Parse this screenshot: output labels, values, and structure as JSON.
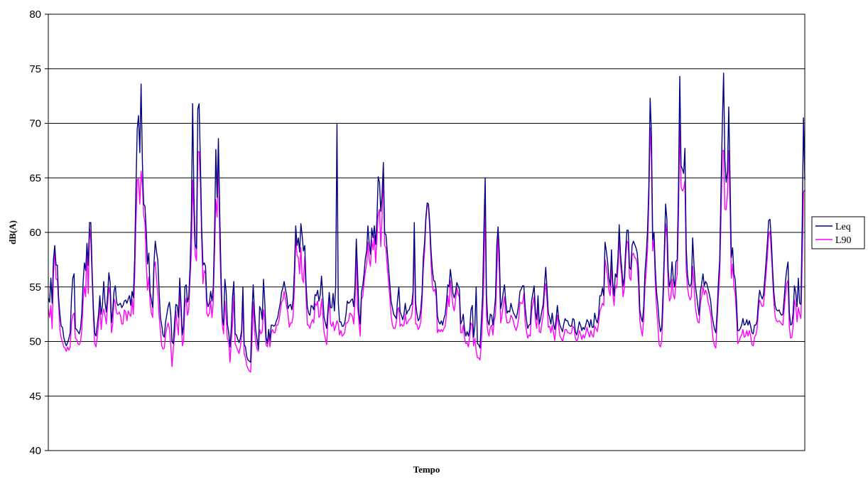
{
  "chart_data": {
    "type": "line",
    "title": "",
    "xlabel": "Tempo",
    "ylabel": "dB(A)",
    "ylim": [
      40,
      80
    ],
    "yticks": [
      "40",
      "45",
      "50",
      "55",
      "60",
      "65",
      "70",
      "75",
      "80"
    ],
    "grid": "horizontal",
    "legend_position": "right",
    "series": [
      {
        "name": "Leq",
        "color": "#000080",
        "values": [
          54,
          53.6,
          55.8,
          53.5,
          57.5,
          58.8,
          57,
          57,
          54,
          52.5,
          51.4,
          51.3,
          50.4,
          49.9,
          49.6,
          49.9,
          50.3,
          50.8,
          54,
          55.8,
          56.2,
          51.2,
          51.1,
          50.9,
          50.7,
          51.2,
          52.6,
          55.4,
          57.2,
          56.5,
          59,
          57,
          60.9,
          60.9,
          56.5,
          53,
          50.8,
          50.5,
          51.5,
          52.5,
          54.2,
          52.5,
          53.3,
          55.5,
          53.6,
          52.7,
          54.2,
          56.3,
          55.4,
          51.7,
          52.9,
          54.6,
          55.1,
          53.6,
          53.3,
          53.4,
          53.5,
          53.1,
          53.3,
          53.7,
          53.8,
          53.5,
          53.9,
          54.2,
          53.3,
          54.6,
          54,
          57.6,
          64,
          69.5,
          70.7,
          67.3,
          73.6,
          66.5,
          62.6,
          62.4,
          60.2,
          57.1,
          58.1,
          54.5,
          53.8,
          53.1,
          57.2,
          59.2,
          58.2,
          57.4,
          54.6,
          52.2,
          51.5,
          50.6,
          50.4,
          51.8,
          52.5,
          53.2,
          53.6,
          52.5,
          50,
          49.8,
          51.8,
          53.4,
          53.3,
          52.2,
          55.8,
          53.4,
          50.6,
          51.5,
          55,
          55.2,
          53.6,
          54.1,
          56.8,
          61.4,
          71.8,
          63.4,
          58.9,
          58.5,
          71.3,
          71.8,
          66.6,
          60.5,
          57,
          57.2,
          56.9,
          53.8,
          53.2,
          53.5,
          54.6,
          53.7,
          54.9,
          59.9,
          67.6,
          63.2,
          68.6,
          61.9,
          56.3,
          52.2,
          51.5,
          55.7,
          54.6,
          51.6,
          50.8,
          49.5,
          51.3,
          54.2,
          55.5,
          50.7,
          50.6,
          50.2,
          49.9,
          50.3,
          51,
          55,
          49.7,
          49.5,
          48.6,
          48.3,
          48.2,
          48.1,
          52.5,
          55.2,
          52.7,
          51,
          50.2,
          49.3,
          53.2,
          52.9,
          52,
          55.7,
          53.6,
          50.4,
          49.8,
          51.1,
          50.1,
          51.5,
          51.5,
          51.4,
          51.5,
          51.9,
          52.2,
          52.9,
          53.5,
          54.5,
          54.9,
          55.5,
          54.8,
          54.2,
          53,
          53.3,
          53.4,
          52.9,
          53.9,
          56.6,
          60.6,
          58.8,
          59.5,
          58.2,
          60.8,
          59.7,
          58.3,
          58.8,
          55.3,
          53.2,
          52.6,
          52.4,
          53.3,
          53.2,
          52.9,
          54.3,
          54.2,
          54.7,
          53.7,
          54.3,
          56,
          54.1,
          52.2,
          51.7,
          51.2,
          52.9,
          54.5,
          53.1,
          53.1,
          54.4,
          52.8,
          55.1,
          70,
          53.6,
          51.8,
          51.8,
          51.4,
          51.4,
          51.7,
          52.5,
          53.7,
          53.5,
          53.6,
          53.8,
          53.9,
          53.2,
          55.1,
          59.4,
          56.3,
          52.7,
          51.6,
          54.5,
          55.1,
          56.2,
          57.6,
          58.3,
          60.6,
          59,
          58,
          60.4,
          59.5,
          60.6,
          58.9,
          61.2,
          65.1,
          64.6,
          61.9,
          63.5,
          66.4,
          59.9,
          59.8,
          58.3,
          56.8,
          55.3,
          53.7,
          53.1,
          52.5,
          52.3,
          52.1,
          53.8,
          55,
          52.7,
          52.4,
          52,
          52.5,
          53.5,
          52.5,
          52.8,
          52.9,
          53.3,
          53.4,
          54.5,
          60.9,
          53.6,
          52.6,
          51.9,
          52.1,
          52.9,
          54.4,
          57.7,
          59.1,
          61.4,
          62.7,
          62.6,
          60.8,
          58.3,
          56.6,
          55.6,
          55.5,
          54.7,
          52.3,
          51.8,
          51.6,
          51.9,
          51.5,
          52.1,
          52.5,
          53.7,
          55.2,
          55,
          56.6,
          55.6,
          54.4,
          54,
          54.5,
          55.4,
          55.1,
          54.8,
          51.6,
          51.9,
          52.5,
          51.1,
          50.5,
          50.9,
          50.5,
          51.1,
          52.9,
          53.3,
          50.4,
          51.4,
          55,
          49.8,
          49.7,
          49.4,
          51.8,
          54.2,
          60.2,
          65,
          54.3,
          51.9,
          51.5,
          52.5,
          52.4,
          51.5,
          52.7,
          54,
          58.8,
          60.5,
          58.1,
          53,
          53.6,
          54.5,
          55.2,
          53.6,
          52.6,
          52.8,
          52.7,
          53.5,
          53,
          52.6,
          52.4,
          52.1,
          52.6,
          53.4,
          54.6,
          54.8,
          55.1,
          55.1,
          53.2,
          52,
          51.2,
          51.5,
          51.6,
          53.7,
          54.4,
          55.1,
          52.7,
          52,
          54.2,
          51.6,
          52.1,
          52.8,
          53.4,
          55.1,
          56.8,
          54.8,
          52.6,
          52.2,
          51.6,
          52.6,
          51.6,
          51.1,
          52,
          53.3,
          52.1,
          51.5,
          51.2,
          50.9,
          51.6,
          52.1,
          51.9,
          51.9,
          51.5,
          51.4,
          51.4,
          52.1,
          52,
          50.9,
          50.6,
          51.1,
          51.8,
          51.5,
          51,
          51.3,
          51.1,
          51.5,
          52,
          51.8,
          51.3,
          52,
          51.3,
          51.3,
          52.6,
          52,
          51.7,
          52.4,
          54.2,
          54.2,
          54.9,
          54.2,
          59.1,
          58.3,
          57.3,
          55.8,
          55.1,
          58.4,
          55.4,
          54.2,
          56.2,
          55.9,
          57.6,
          60.7,
          58,
          56.7,
          55.1,
          55.9,
          58.4,
          60.2,
          60.2,
          56.8,
          56.6,
          58.8,
          59.2,
          58.9,
          58.6,
          58.1,
          56.5,
          52.9,
          52.2,
          51.8,
          53.2,
          56.4,
          58,
          60.2,
          64.3,
          72.3,
          69.1,
          59.3,
          60,
          56.7,
          54.5,
          53.4,
          51.8,
          50.9,
          51.3,
          54.4,
          58.2,
          62.6,
          61.2,
          56.6,
          55,
          55.5,
          57.3,
          55.7,
          55,
          57.3,
          57.5,
          64.1,
          74.3,
          66.1,
          65.8,
          65.4,
          67.7,
          58.6,
          56.1,
          55.2,
          55.1,
          55.3,
          59.5,
          57.1,
          55.2,
          54.3,
          53.3,
          52.4,
          54.6,
          55.3,
          56.2,
          55.1,
          55.5,
          55.3,
          54.8,
          54.3,
          53.7,
          52.4,
          51.7,
          51.1,
          50.8,
          52.8,
          55.5,
          57.5,
          64,
          69.8,
          74.6,
          66.6,
          64.6,
          65.6,
          71.5,
          64.9,
          57.7,
          58.6,
          56.2,
          55.7,
          53.7,
          51,
          51,
          51.2,
          51.5,
          52.1,
          51.5,
          51.6,
          52,
          51.5,
          51.9,
          51.4,
          50.8,
          50.7,
          51.5,
          51.5,
          51.9,
          53.6,
          54.7,
          54.2,
          53.9,
          54.3,
          55.8,
          57.4,
          59.1,
          61.1,
          61.2,
          59.4,
          56.7,
          54.5,
          53.3,
          52.9,
          52.8,
          52.9,
          52.6,
          52.4,
          52.5,
          53.9,
          55.5,
          56.6,
          57.3,
          52.7,
          51.5,
          51.6,
          52.7,
          55.1,
          54.5,
          53.2,
          55.8,
          53.5,
          53.4,
          60.8,
          70.5,
          64.8
        ]
      },
      {
        "name": "L90",
        "color": "#FF00FF",
        "values": [
          53,
          52.2,
          53.3,
          51.2,
          56.2,
          58.4,
          55.7,
          55.7,
          53.4,
          51.1,
          50.3,
          50,
          49.5,
          49.4,
          49.1,
          49.5,
          49.2,
          49.5,
          51.7,
          52.4,
          52.6,
          50.3,
          50.2,
          49.8,
          49.7,
          50,
          51,
          53.7,
          55,
          54.1,
          58.8,
          54.4,
          60.4,
          59.2,
          55.9,
          52.3,
          49.8,
          49.5,
          50.5,
          51.6,
          53.4,
          51.1,
          52.4,
          53,
          52.4,
          51.6,
          53.4,
          55,
          54.3,
          50.8,
          51.6,
          53.9,
          53.5,
          52.6,
          52.5,
          52.7,
          52.4,
          51.6,
          51.6,
          52.9,
          52.7,
          51.9,
          52.8,
          52.5,
          52.3,
          53.9,
          52.5,
          55.7,
          60.7,
          64.8,
          64.9,
          62.6,
          65.6,
          64.2,
          61.6,
          60.9,
          57.1,
          54.7,
          55.9,
          53.6,
          52.6,
          52.2,
          56.8,
          57.3,
          55.7,
          54.4,
          52.3,
          51,
          49.6,
          49.3,
          49.4,
          50.6,
          51.3,
          51.7,
          51.2,
          49.7,
          47.7,
          49.3,
          50.5,
          52.8,
          51.5,
          50.6,
          54.7,
          52.6,
          49.6,
          50.1,
          53.4,
          54,
          52.4,
          52.9,
          55.8,
          58.2,
          64.8,
          61.4,
          57.9,
          57.4,
          67.4,
          67.4,
          64.7,
          59.5,
          55.3,
          56.5,
          56.2,
          52.6,
          52.3,
          52.6,
          53.7,
          52.2,
          53.6,
          58.1,
          63,
          61.4,
          67.1,
          59.5,
          54.9,
          51.6,
          50.7,
          53.7,
          52.1,
          50.2,
          50,
          48.1,
          50.1,
          51.6,
          54.5,
          49.8,
          49.5,
          49.2,
          48.9,
          49.5,
          50.5,
          53.5,
          48.9,
          48.5,
          47.8,
          47.5,
          47.3,
          47.2,
          49.9,
          53.6,
          51,
          49.9,
          49.3,
          49.1,
          51.1,
          50.7,
          50.9,
          52.9,
          51.9,
          49.7,
          49.5,
          50.7,
          49.5,
          50.8,
          51.1,
          50.8,
          50.8,
          51.5,
          51.5,
          51.9,
          52.8,
          53.6,
          53.8,
          54.6,
          53.9,
          53.2,
          52.5,
          51.3,
          51.7,
          51.7,
          52.4,
          55,
          59.7,
          57.9,
          57.7,
          56.2,
          58.6,
          55.8,
          55.4,
          57.8,
          54.1,
          51.5,
          51.5,
          51.2,
          51.7,
          52,
          51.7,
          53.5,
          53.3,
          53.7,
          52.2,
          52.4,
          53.9,
          52.4,
          50.8,
          50.3,
          49.7,
          52.3,
          54,
          51.6,
          51.4,
          51.8,
          51,
          51.4,
          51.9,
          51.6,
          50.6,
          51,
          50.5,
          50.6,
          50.8,
          51.7,
          51.7,
          51.9,
          52.6,
          52.5,
          52.3,
          51.6,
          53.7,
          58,
          53.2,
          51.9,
          50.5,
          53.9,
          54.1,
          55.4,
          56.4,
          57.1,
          59.1,
          57.5,
          56.9,
          59.3,
          58.4,
          59.7,
          57.2,
          59.4,
          61.7,
          62.1,
          58.7,
          61.4,
          65.5,
          58.8,
          58.6,
          56.8,
          55.5,
          54.1,
          52.4,
          51.5,
          51.2,
          51.2,
          51.7,
          52.9,
          53.1,
          51.4,
          51.6,
          51.4,
          51.5,
          52.5,
          51.6,
          51.8,
          52,
          52.1,
          52.4,
          53.6,
          59.6,
          51.6,
          51.6,
          51.1,
          51.3,
          51.8,
          53.6,
          56.7,
          58.3,
          61.1,
          62.5,
          62.4,
          60.3,
          57.2,
          55.1,
          54.6,
          54.8,
          54.1,
          50.8,
          51.1,
          50.9,
          51.1,
          50.9,
          51.2,
          51.4,
          52.5,
          54.2,
          53.2,
          55.6,
          54.3,
          53.3,
          52.8,
          53.8,
          54.9,
          54.4,
          54,
          50.8,
          50.8,
          51.5,
          50.3,
          49.8,
          49.9,
          49.5,
          50.5,
          51.7,
          51.5,
          49.6,
          50.3,
          49.2,
          48.5,
          48.5,
          48.3,
          49.8,
          52.2,
          56.2,
          62.8,
          52.4,
          50.9,
          50.5,
          51.3,
          51.5,
          50.6,
          51.9,
          52.4,
          56,
          59.8,
          56.4,
          51.7,
          52.3,
          53.4,
          54.1,
          52.4,
          51.7,
          51.7,
          51.8,
          52.4,
          52.2,
          51.8,
          51.3,
          51,
          51.4,
          52.1,
          53.6,
          53.5,
          53.5,
          54.4,
          51.8,
          51,
          50.3,
          50.6,
          50.5,
          52.8,
          53.4,
          54.1,
          51.9,
          51.2,
          53.5,
          50.9,
          50.8,
          51.7,
          52.4,
          54.5,
          55.3,
          53.7,
          51.3,
          51.4,
          50.8,
          51.5,
          50.8,
          50.1,
          51.4,
          52.4,
          51.5,
          50.5,
          50.3,
          50,
          50.5,
          51.1,
          51.1,
          50.8,
          50.8,
          50.7,
          50.8,
          51.4,
          51.2,
          50.3,
          50,
          50.3,
          51,
          50.7,
          50.2,
          50.6,
          50.3,
          50.7,
          51.3,
          50.8,
          50.4,
          51,
          50.6,
          50.4,
          51.4,
          51.2,
          50.9,
          51.7,
          52.8,
          53.1,
          53.5,
          53.3,
          57.5,
          56.8,
          55.9,
          54.7,
          54.2,
          56.9,
          54.5,
          53.3,
          55.1,
          54.9,
          56.6,
          59.6,
          57.1,
          55.9,
          54.1,
          54.9,
          57.5,
          59.2,
          59,
          55.9,
          55.6,
          57.9,
          58.1,
          57.7,
          57.6,
          57.1,
          55.1,
          51.9,
          51.1,
          50.5,
          52.1,
          55,
          56.5,
          58.5,
          62.9,
          69.6,
          66.7,
          58.3,
          59.4,
          55.3,
          53.1,
          51.5,
          49.7,
          49.5,
          50.1,
          53,
          57.3,
          60.8,
          59.6,
          55.1,
          53.7,
          54,
          55.7,
          54.3,
          53.9,
          55.5,
          56.1,
          61.3,
          70,
          64.2,
          63.8,
          64,
          64.7,
          56.6,
          54.9,
          54.2,
          53.8,
          54.1,
          56.9,
          55.3,
          53.3,
          52.4,
          51.8,
          51.7,
          53.5,
          54.1,
          55.1,
          54.3,
          54.7,
          54.4,
          53.6,
          53.2,
          52.5,
          51.2,
          50.1,
          49.6,
          49.4,
          51.9,
          54.2,
          56.2,
          61.3,
          67.5,
          67.5,
          62.1,
          62.1,
          63.5,
          67.5,
          62.6,
          55.8,
          57.1,
          55.1,
          54.4,
          52.4,
          49.8,
          50,
          50.4,
          50.6,
          51.1,
          50.4,
          50.5,
          51,
          50.5,
          51,
          50.5,
          49.7,
          49.6,
          50.4,
          50.6,
          51.2,
          52.8,
          53.8,
          53.5,
          53.2,
          53.3,
          54.8,
          56.2,
          57.8,
          59.8,
          60.1,
          58.3,
          55.9,
          53.6,
          52.3,
          51.9,
          51.8,
          51.9,
          51.8,
          51.6,
          51.5,
          52.9,
          54.3,
          55.3,
          55.6,
          51.3,
          50.3,
          50.4,
          51.5,
          53.8,
          53.3,
          51.8,
          53.1,
          52.5,
          52.1,
          57.3,
          63.7,
          63.9
        ]
      }
    ]
  }
}
